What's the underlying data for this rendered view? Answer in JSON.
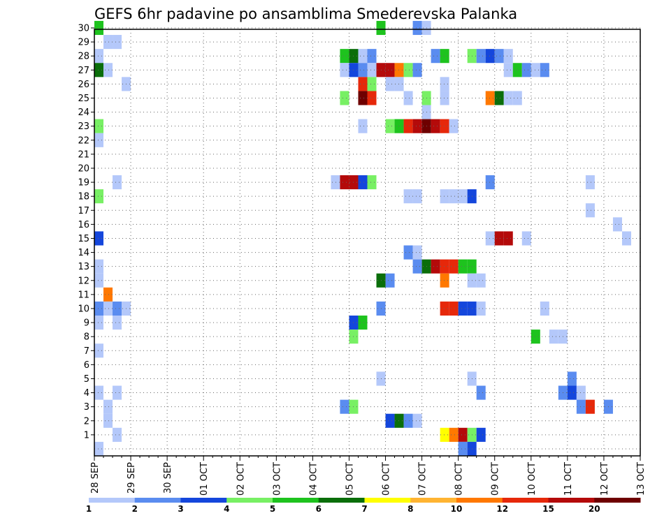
{
  "chart_data": {
    "type": "heatmap",
    "title": "GEFS 6hr padavine po ansamblima Smederevska Palanka",
    "xlabel": "",
    "ylabel": "",
    "x_tick_labels": [
      "28 SEP",
      "29 SEP",
      "30 SEP",
      "01 OCT",
      "02 OCT",
      "03 OCT",
      "04 OCT",
      "05 OCT",
      "06 OCT",
      "07 OCT",
      "08 OCT",
      "09 OCT",
      "10 OCT",
      "11 OCT",
      "12 OCT",
      "13 OCT"
    ],
    "y_tick_labels": [
      "1",
      "2",
      "3",
      "4",
      "5",
      "6",
      "7",
      "8",
      "9",
      "10",
      "11",
      "12",
      "13",
      "14",
      "15",
      "16",
      "17",
      "18",
      "19",
      "20",
      "21",
      "22",
      "23",
      "24",
      "25",
      "26",
      "27",
      "28",
      "29",
      "30"
    ],
    "xlim_steps": [
      0,
      60
    ],
    "ylim": [
      0,
      30
    ],
    "step_hours": 6,
    "grid": true,
    "colorbar": {
      "placement": "bottom",
      "labels": [
        "1",
        "2",
        "3",
        "4",
        "5",
        "6",
        "7",
        "8",
        "10",
        "12",
        "15",
        "20"
      ],
      "colors": [
        "#b4c8fa",
        "#5a8cf0",
        "#1446dc",
        "#78f064",
        "#1ec31e",
        "#0a6e0a",
        "#ffff00",
        "#ffb432",
        "#ff7800",
        "#e6280a",
        "#b40a0a",
        "#6e0000"
      ]
    },
    "cells": [
      [
        0,
        30,
        5
      ],
      [
        31,
        30,
        5
      ],
      [
        35,
        30,
        2
      ],
      [
        36,
        30,
        1
      ],
      [
        1,
        29,
        1
      ],
      [
        2,
        29,
        1
      ],
      [
        0,
        28,
        1
      ],
      [
        27,
        28,
        5
      ],
      [
        28,
        28,
        6
      ],
      [
        29,
        28,
        1
      ],
      [
        30,
        28,
        2
      ],
      [
        37,
        28,
        2
      ],
      [
        38,
        28,
        5
      ],
      [
        41,
        28,
        4
      ],
      [
        42,
        28,
        2
      ],
      [
        43,
        28,
        3
      ],
      [
        44,
        28,
        2
      ],
      [
        45,
        28,
        1
      ],
      [
        0,
        27,
        6
      ],
      [
        1,
        27,
        1
      ],
      [
        27,
        27,
        1
      ],
      [
        28,
        27,
        3
      ],
      [
        29,
        27,
        2
      ],
      [
        30,
        27,
        1
      ],
      [
        31,
        27,
        11
      ],
      [
        32,
        27,
        11
      ],
      [
        33,
        27,
        9
      ],
      [
        34,
        27,
        4
      ],
      [
        35,
        27,
        2
      ],
      [
        45,
        27,
        1
      ],
      [
        46,
        27,
        5
      ],
      [
        47,
        27,
        2
      ],
      [
        48,
        27,
        1
      ],
      [
        49,
        27,
        2
      ],
      [
        3,
        26,
        1
      ],
      [
        29,
        26,
        10
      ],
      [
        30,
        26,
        4
      ],
      [
        32,
        26,
        1
      ],
      [
        33,
        26,
        1
      ],
      [
        38,
        26,
        1
      ],
      [
        27,
        25,
        4
      ],
      [
        29,
        25,
        12
      ],
      [
        30,
        25,
        10
      ],
      [
        34,
        25,
        1
      ],
      [
        36,
        25,
        4
      ],
      [
        38,
        25,
        1
      ],
      [
        43,
        25,
        9
      ],
      [
        44,
        25,
        6
      ],
      [
        45,
        25,
        1
      ],
      [
        46,
        25,
        1
      ],
      [
        36,
        24,
        1
      ],
      [
        0,
        23,
        4
      ],
      [
        29,
        23,
        1
      ],
      [
        32,
        23,
        4
      ],
      [
        33,
        23,
        5
      ],
      [
        34,
        23,
        10
      ],
      [
        35,
        23,
        11
      ],
      [
        36,
        23,
        12
      ],
      [
        37,
        23,
        11
      ],
      [
        38,
        23,
        10
      ],
      [
        39,
        23,
        1
      ],
      [
        0,
        22,
        1
      ],
      [
        2,
        19,
        1
      ],
      [
        26,
        19,
        1
      ],
      [
        27,
        19,
        11
      ],
      [
        28,
        19,
        11
      ],
      [
        29,
        19,
        3
      ],
      [
        30,
        19,
        4
      ],
      [
        43,
        19,
        2
      ],
      [
        54,
        19,
        1
      ],
      [
        0,
        18,
        4
      ],
      [
        34,
        18,
        1
      ],
      [
        35,
        18,
        1
      ],
      [
        38,
        18,
        1
      ],
      [
        39,
        18,
        1
      ],
      [
        40,
        18,
        1
      ],
      [
        41,
        18,
        3
      ],
      [
        54,
        17,
        1
      ],
      [
        57,
        16,
        1
      ],
      [
        0,
        15,
        3
      ],
      [
        43,
        15,
        1
      ],
      [
        44,
        15,
        11
      ],
      [
        45,
        15,
        11
      ],
      [
        47,
        15,
        1
      ],
      [
        58,
        15,
        1
      ],
      [
        34,
        14,
        2
      ],
      [
        35,
        14,
        1
      ],
      [
        0,
        13,
        1
      ],
      [
        35,
        13,
        2
      ],
      [
        36,
        13,
        6
      ],
      [
        37,
        13,
        11
      ],
      [
        38,
        13,
        10
      ],
      [
        39,
        13,
        10
      ],
      [
        40,
        13,
        5
      ],
      [
        41,
        13,
        5
      ],
      [
        0,
        12,
        1
      ],
      [
        31,
        12,
        6
      ],
      [
        32,
        12,
        2
      ],
      [
        38,
        12,
        9
      ],
      [
        41,
        12,
        1
      ],
      [
        42,
        12,
        1
      ],
      [
        1,
        11,
        9
      ],
      [
        0,
        10,
        2
      ],
      [
        1,
        10,
        1
      ],
      [
        2,
        10,
        2
      ],
      [
        3,
        10,
        1
      ],
      [
        31,
        10,
        2
      ],
      [
        38,
        10,
        10
      ],
      [
        39,
        10,
        10
      ],
      [
        40,
        10,
        3
      ],
      [
        41,
        10,
        3
      ],
      [
        42,
        10,
        1
      ],
      [
        49,
        10,
        1
      ],
      [
        0,
        9,
        1
      ],
      [
        2,
        9,
        1
      ],
      [
        28,
        9,
        3
      ],
      [
        29,
        9,
        5
      ],
      [
        28,
        8,
        4
      ],
      [
        48,
        8,
        5
      ],
      [
        50,
        8,
        1
      ],
      [
        51,
        8,
        1
      ],
      [
        0,
        7,
        1
      ],
      [
        31,
        5,
        1
      ],
      [
        41,
        5,
        1
      ],
      [
        52,
        5,
        2
      ],
      [
        0,
        4,
        1
      ],
      [
        2,
        4,
        1
      ],
      [
        42,
        4,
        2
      ],
      [
        51,
        4,
        2
      ],
      [
        52,
        4,
        3
      ],
      [
        53,
        4,
        1
      ],
      [
        1,
        3,
        1
      ],
      [
        27,
        3,
        2
      ],
      [
        28,
        3,
        4
      ],
      [
        53,
        3,
        2
      ],
      [
        54,
        3,
        10
      ],
      [
        56,
        3,
        2
      ],
      [
        1,
        2,
        1
      ],
      [
        32,
        2,
        3
      ],
      [
        33,
        2,
        6
      ],
      [
        34,
        2,
        2
      ],
      [
        35,
        2,
        1
      ],
      [
        2,
        1,
        1
      ],
      [
        38,
        1,
        7
      ],
      [
        39,
        1,
        9
      ],
      [
        40,
        1,
        11
      ],
      [
        41,
        1,
        4
      ],
      [
        42,
        1,
        3
      ],
      [
        0,
        0,
        1
      ],
      [
        40,
        0,
        2
      ],
      [
        41,
        0,
        3
      ]
    ]
  }
}
